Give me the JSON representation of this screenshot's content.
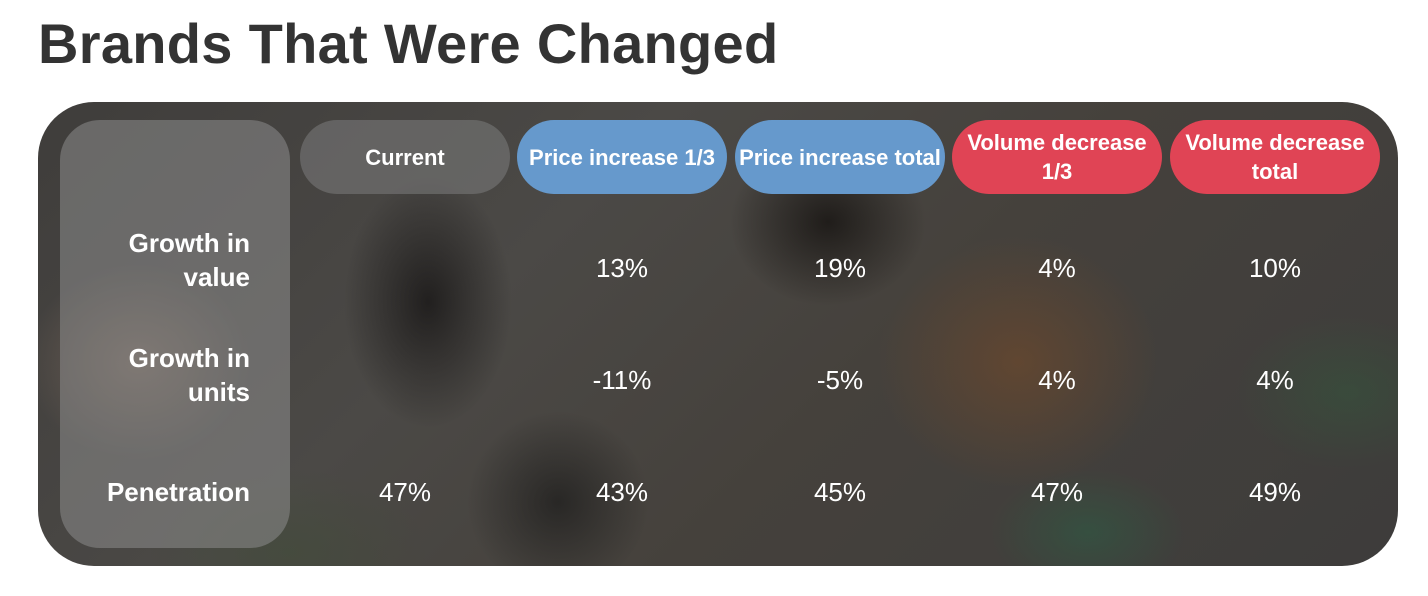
{
  "title": "Brands That Were Changed",
  "colors": {
    "current": "#6c6b6a",
    "price": "#6699cc",
    "volume": "#e04455"
  },
  "columns": [
    {
      "label": "Current",
      "style": "current"
    },
    {
      "label": "Price increase 1/3",
      "style": "price"
    },
    {
      "label": "Price increase total",
      "style": "price"
    },
    {
      "label": "Volume decrease 1/3",
      "style": "volume"
    },
    {
      "label": "Volume decrease total",
      "style": "volume"
    }
  ],
  "rows": [
    {
      "label": "Growth in value",
      "values": [
        "",
        "13%",
        "19%",
        "4%",
        "10%"
      ]
    },
    {
      "label": "Growth in units",
      "values": [
        "",
        "-11%",
        "-5%",
        "4%",
        "4%"
      ]
    },
    {
      "label": "Penetration",
      "values": [
        "47%",
        "43%",
        "45%",
        "47%",
        "49%"
      ]
    }
  ]
}
